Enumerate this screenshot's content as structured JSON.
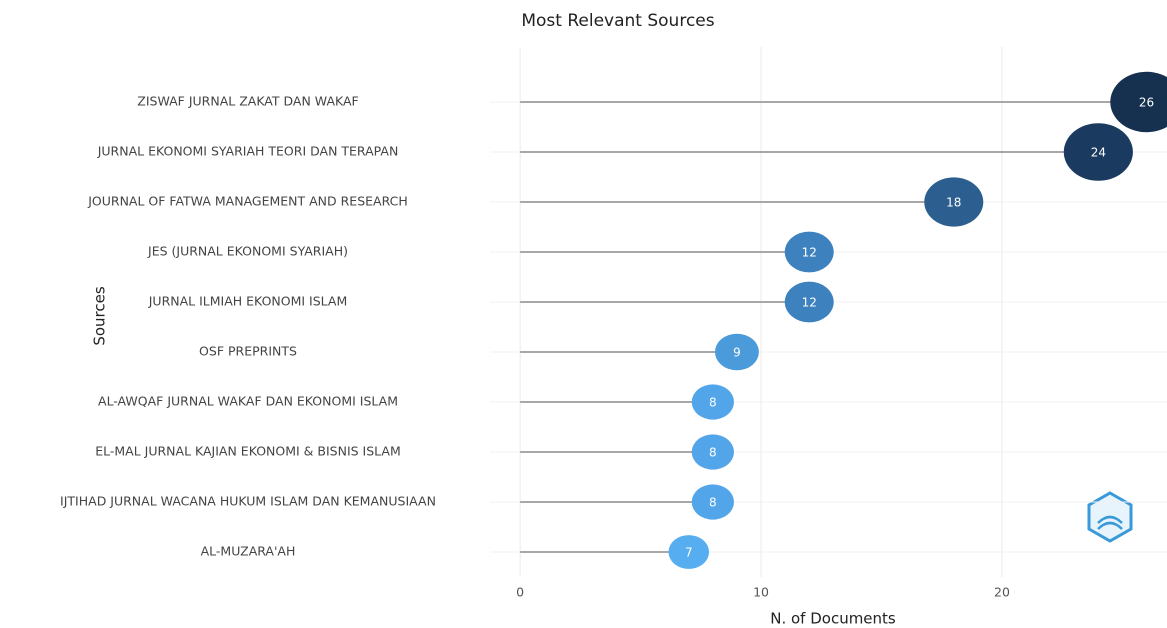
{
  "chart_data": {
    "type": "lollipop",
    "title": "Most Relevant Sources",
    "x_label": "N. of Documents",
    "y_label": "Sources",
    "categories": [
      "ZISWAF JURNAL ZAKAT DAN WAKAF",
      "JURNAL EKONOMI SYARIAH TEORI DAN TERAPAN",
      "JOURNAL OF FATWA MANAGEMENT AND RESEARCH",
      "JES (JURNAL EKONOMI SYARIAH)",
      "JURNAL ILMIAH EKONOMI ISLAM",
      "OSF PREPRINTS",
      "AL-AWQAF JURNAL WAKAF DAN EKONOMI ISLAM",
      "EL-MAL JURNAL KAJIAN EKONOMI & BISNIS ISLAM",
      "IJTIHAD JURNAL WACANA HUKUM ISLAM DAN KEMANUSIAAN",
      "AL-MUZARA'AH"
    ],
    "values": [
      26,
      24,
      18,
      12,
      12,
      9,
      8,
      8,
      8,
      7
    ],
    "colors": [
      "#16304f",
      "#1b3a60",
      "#2c5f90",
      "#3d82bf",
      "#3d82bf",
      "#4b9bda",
      "#51a5e8",
      "#51a5e8",
      "#51a5e8",
      "#56aef1"
    ],
    "stem_color": "#8c8c8c",
    "xlim": [
      -1.25,
      26.85
    ],
    "xticks": [
      0,
      10,
      20
    ],
    "grid": true
  }
}
